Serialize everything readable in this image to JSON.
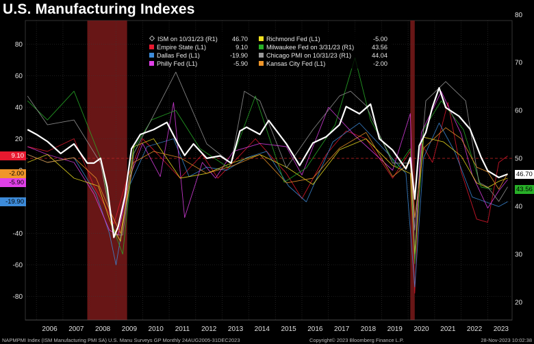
{
  "title": "U.S. Manufacturing Indexes",
  "footer": {
    "left": "NAPMPMI Index (ISM Manufacturing PMI SA) U.S. Manu Surveys GP  Monthly 24AUG2005-31DEC2023",
    "center": "Copyright© 2023 Bloomberg Finance L.P.",
    "right": "28-Nov-2023 10:02:38"
  },
  "colors": {
    "ism": "#ffffff",
    "empire": "#e8192f",
    "dallas": "#3d8bd9",
    "philly": "#e040e8",
    "richmond": "#f0e020",
    "milwaukee": "#28b028",
    "chicago": "#9a9a9a",
    "kansas": "#f0962a",
    "recession": "#7a1a1a"
  },
  "legend": [
    {
      "label": "ISM on 10/31/23 (R1)",
      "value": "46.70",
      "color": "#ffffff",
      "marker": "diamond"
    },
    {
      "label": "Richmond Fed (L1)",
      "value": "-5.00",
      "color": "#f0e020",
      "marker": "square"
    },
    {
      "label": "Empire State (L1)",
      "value": "9.10",
      "color": "#e8192f",
      "marker": "square"
    },
    {
      "label": "Milwaukee Fed on 3/31/23 (R1)",
      "value": "43.56",
      "color": "#28b028",
      "marker": "square"
    },
    {
      "label": "Dallas Fed (L1)",
      "value": "-19.90",
      "color": "#3d8bd9",
      "marker": "square"
    },
    {
      "label": "Chicago PMI on 10/31/23 (R1)",
      "value": "44.04",
      "color": "#9a9a9a",
      "marker": "square"
    },
    {
      "label": "Philly Fed (L1)",
      "value": "-5.90",
      "color": "#e040e8",
      "marker": "square"
    },
    {
      "label": "Kansas City Fed (L1)",
      "value": "-2.00",
      "color": "#f0962a",
      "marker": "square"
    }
  ],
  "axis_tags": {
    "left": [
      {
        "text": "9.10",
        "color": "#e8192f",
        "value": 9.1
      },
      {
        "text": "-2.00",
        "color": "#f0962a",
        "value": -2.0
      },
      {
        "text": "-5.90",
        "color": "#e040e8",
        "value": -5.9
      },
      {
        "text": "-19.90",
        "color": "#3d8bd9",
        "value": -19.9
      }
    ],
    "right": [
      {
        "text": "46.70",
        "color": "#ffffff",
        "value": 46.7
      },
      {
        "text": "43.56",
        "color": "#28b028",
        "value": 43.56
      }
    ]
  },
  "chart_data": {
    "type": "line",
    "title": "U.S. Manufacturing Indexes",
    "x_range": [
      "2005-08",
      "2023-12"
    ],
    "x_tick_labels": [
      "2006",
      "2007",
      "2008",
      "2009",
      "2010",
      "2011",
      "2012",
      "2013",
      "2014",
      "2015",
      "2016",
      "2017",
      "2018",
      "2019",
      "2020",
      "2021",
      "2022",
      "2023"
    ],
    "left_axis": {
      "label": "",
      "ylim": [
        -95,
        95
      ],
      "ticks": [
        -80,
        -60,
        -40,
        -20,
        0,
        20,
        40,
        60,
        80
      ]
    },
    "right_axis": {
      "label": "",
      "ylim": [
        16.25,
        78.75
      ],
      "ticks": [
        20,
        30,
        40,
        50,
        60,
        70,
        80
      ]
    },
    "reference_line": {
      "axis": "right",
      "value": 50
    },
    "recessions": [
      {
        "start": "2007-12",
        "end": "2009-06"
      },
      {
        "start": "2020-02",
        "end": "2020-04"
      }
    ],
    "series": [
      {
        "name": "ISM on 10/31/23 (R1)",
        "axis": "right",
        "color": "#ffffff",
        "last": 46.7,
        "x": [
          "2005-09",
          "2006-01",
          "2006-06",
          "2006-12",
          "2007-06",
          "2007-12",
          "2008-03",
          "2008-06",
          "2008-09",
          "2008-12",
          "2009-02",
          "2009-05",
          "2009-08",
          "2009-12",
          "2010-06",
          "2010-12",
          "2011-05",
          "2011-08",
          "2011-12",
          "2012-06",
          "2012-12",
          "2013-05",
          "2013-09",
          "2013-12",
          "2014-06",
          "2014-10",
          "2015-06",
          "2015-12",
          "2016-06",
          "2016-12",
          "2017-06",
          "2017-09",
          "2018-03",
          "2018-08",
          "2018-12",
          "2019-06",
          "2019-12",
          "2020-02",
          "2020-04",
          "2020-06",
          "2020-09",
          "2020-12",
          "2021-03",
          "2021-06",
          "2021-12",
          "2022-05",
          "2022-10",
          "2023-01",
          "2023-06",
          "2023-10"
        ],
        "y": [
          56,
          55,
          53.5,
          51,
          53,
          49,
          49,
          50,
          44,
          33.5,
          35.8,
          42,
          52,
          55,
          56,
          57.5,
          53,
          50.6,
          53,
          50,
          50.5,
          49,
          55.7,
          56.5,
          55,
          57.9,
          53,
          48.5,
          53.2,
          54.5,
          57,
          60.8,
          59.3,
          61.3,
          54.1,
          51.7,
          47.8,
          50.1,
          41.5,
          52.6,
          55.4,
          60.7,
          64.7,
          60.6,
          58.8,
          56.1,
          50.2,
          47.4,
          46.0,
          46.7
        ]
      },
      {
        "name": "Empire State (L1)",
        "axis": "left",
        "color": "#e8192f",
        "last": 9.1,
        "x": [
          "2005-09",
          "2006-06",
          "2007-06",
          "2008-03",
          "2008-09",
          "2008-12",
          "2009-06",
          "2010-01",
          "2010-08",
          "2011-06",
          "2012-04",
          "2012-11",
          "2013-08",
          "2014-04",
          "2015-06",
          "2016-01",
          "2016-12",
          "2017-09",
          "2018-06",
          "2019-06",
          "2020-02",
          "2020-04",
          "2020-07",
          "2020-12",
          "2021-07",
          "2022-01",
          "2022-08",
          "2023-01",
          "2023-06",
          "2023-10"
        ],
        "y": [
          15,
          12,
          20,
          -10,
          -25,
          -34,
          -5,
          20,
          10,
          -5,
          10,
          -5,
          8,
          20,
          -2,
          -18,
          10,
          25,
          20,
          -5,
          12,
          -78,
          17,
          5,
          43,
          -1,
          -31,
          -33,
          5,
          9.1
        ]
      },
      {
        "name": "Dallas Fed (L1)",
        "axis": "left",
        "color": "#3d8bd9",
        "last": -19.9,
        "x": [
          "2005-09",
          "2006-06",
          "2007-06",
          "2008-04",
          "2008-10",
          "2009-01",
          "2009-07",
          "2010-03",
          "2011-03",
          "2011-10",
          "2012-06",
          "2013-03",
          "2013-12",
          "2014-09",
          "2015-07",
          "2016-03",
          "2017-03",
          "2018-03",
          "2019-03",
          "2019-12",
          "2020-04",
          "2020-08",
          "2021-03",
          "2021-10",
          "2022-06",
          "2022-12",
          "2023-06",
          "2023-10"
        ],
        "y": [
          10,
          5,
          8,
          -15,
          -40,
          -60,
          -10,
          15,
          20,
          -4,
          2,
          0,
          8,
          12,
          -10,
          -20,
          18,
          30,
          12,
          -2,
          -74,
          8,
          30,
          12,
          -17,
          -20,
          -23,
          -19.9
        ]
      },
      {
        "name": "Philly Fed (L1)",
        "axis": "left",
        "color": "#e040e8",
        "last": -5.9,
        "x": [
          "2005-09",
          "2006-06",
          "2007-06",
          "2008-03",
          "2008-10",
          "2009-02",
          "2009-07",
          "2010-01",
          "2010-09",
          "2011-03",
          "2011-08",
          "2012-04",
          "2012-10",
          "2013-06",
          "2014-06",
          "2015-06",
          "2016-01",
          "2017-01",
          "2018-01",
          "2019-06",
          "2020-02",
          "2020-04",
          "2020-07",
          "2021-04",
          "2022-01",
          "2022-06",
          "2023-01",
          "2023-06",
          "2023-10"
        ],
        "y": [
          15,
          10,
          5,
          -15,
          -38,
          -41,
          -5,
          17,
          -4,
          43,
          -30,
          5,
          -5,
          12,
          17,
          15,
          -3,
          40,
          22,
          0,
          36,
          -56,
          24,
          50,
          23,
          -3,
          -24,
          -13,
          -5.9
        ]
      },
      {
        "name": "Richmond Fed (L1)",
        "axis": "left",
        "color": "#f0e020",
        "last": -5.0,
        "x": [
          "2005-09",
          "2006-06",
          "2007-06",
          "2008-05",
          "2008-11",
          "2009-03",
          "2009-09",
          "2010-06",
          "2011-06",
          "2012-06",
          "2013-06",
          "2014-06",
          "2015-06",
          "2016-06",
          "2017-06",
          "2018-06",
          "2019-06",
          "2020-02",
          "2020-04",
          "2020-08",
          "2021-05",
          "2022-01",
          "2022-08",
          "2023-01",
          "2023-06",
          "2023-10"
        ],
        "y": [
          5,
          10,
          -5,
          -10,
          -35,
          -45,
          15,
          20,
          -5,
          -2,
          5,
          10,
          2,
          -9,
          13,
          20,
          3,
          -2,
          -53,
          21,
          18,
          9,
          -8,
          -11,
          -7,
          -5
        ]
      },
      {
        "name": "Milwaukee Fed on 3/31/23 (R1)",
        "axis": "right",
        "color": "#28b028",
        "last": 43.56,
        "x": [
          "2005-09",
          "2006-06",
          "2007-06",
          "2008-06",
          "2008-12",
          "2009-04",
          "2009-09",
          "2010-05",
          "2011-04",
          "2012-03",
          "2013-04",
          "2014-04",
          "2015-05",
          "2016-03",
          "2017-04",
          "2018-01",
          "2018-08",
          "2019-08",
          "2020-02",
          "2020-04",
          "2020-08",
          "2021-04",
          "2022-02",
          "2022-10",
          "2023-03"
        ],
        "y": [
          62,
          58,
          64,
          50,
          35,
          30,
          52,
          58,
          60,
          52,
          48,
          63,
          45,
          48,
          57,
          71,
          58,
          48,
          52,
          28,
          56,
          62,
          56,
          44,
          43.56
        ]
      },
      {
        "name": "Chicago PMI on 10/31/23 (R1)",
        "axis": "right",
        "color": "#9a9a9a",
        "last": 44.04,
        "x": [
          "2005-09",
          "2006-06",
          "2007-06",
          "2008-06",
          "2008-12",
          "2009-04",
          "2009-09",
          "2010-06",
          "2011-04",
          "2012-06",
          "2013-05",
          "2013-11",
          "2014-06",
          "2015-06",
          "2016-06",
          "2017-06",
          "2017-11",
          "2018-06",
          "2019-06",
          "2020-02",
          "2020-04",
          "2020-09",
          "2021-06",
          "2022-03",
          "2022-09",
          "2023-01",
          "2023-06",
          "2023-10"
        ],
        "y": [
          63,
          57,
          58,
          49,
          34,
          34,
          51,
          59,
          68,
          53,
          49,
          64,
          62,
          48,
          56,
          63,
          64,
          61,
          49,
          49,
          35,
          62,
          66,
          62,
          45,
          44,
          41,
          44.04
        ]
      },
      {
        "name": "Kansas City Fed (L1)",
        "axis": "left",
        "color": "#f0962a",
        "last": -2.0,
        "x": [
          "2005-09",
          "2006-06",
          "2007-06",
          "2008-04",
          "2008-10",
          "2009-03",
          "2009-09",
          "2010-06",
          "2011-06",
          "2012-06",
          "2013-06",
          "2014-06",
          "2015-06",
          "2016-06",
          "2017-06",
          "2018-06",
          "2019-06",
          "2020-02",
          "2020-04",
          "2020-08",
          "2021-06",
          "2022-01",
          "2022-08",
          "2023-01",
          "2023-06",
          "2023-10"
        ],
        "y": [
          10,
          5,
          8,
          -5,
          -25,
          -40,
          5,
          12,
          8,
          -2,
          3,
          10,
          -8,
          -5,
          14,
          24,
          -4,
          5,
          -30,
          14,
          27,
          20,
          2,
          -1,
          -12,
          -2
        ]
      }
    ]
  }
}
